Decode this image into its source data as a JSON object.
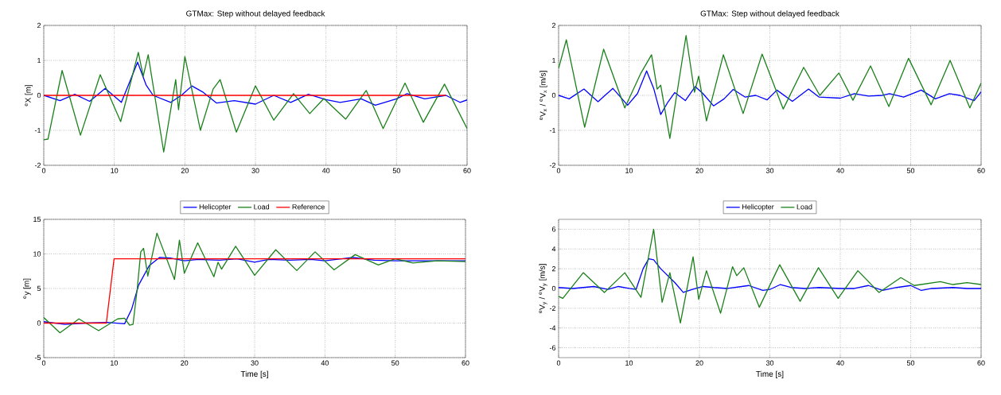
{
  "chart_data": [
    {
      "type": "line",
      "title": "GTMax: Step without delayed feedback",
      "ylabel": "$^{e}$X [m]",
      "xlim": [
        0,
        60
      ],
      "ylim": [
        -2,
        2
      ],
      "xticks": [
        0,
        10,
        20,
        30,
        40,
        50,
        60
      ],
      "yticks": [
        -2,
        -1,
        0,
        1,
        2
      ],
      "grid": true,
      "series": [
        {
          "color": "#0000ff",
          "x": [
            0,
            2.3,
            4.4,
            6.5,
            8.7,
            11.0,
            12.2,
            13.3,
            14.5,
            15.5,
            18,
            19.5,
            21,
            22.5,
            24.5,
            27,
            30,
            32.6,
            35,
            37.5,
            40,
            42,
            45,
            47,
            50,
            51.5,
            54,
            57,
            59,
            60
          ],
          "values": [
            0,
            -0.15,
            0.03,
            -0.17,
            0.2,
            -0.2,
            0.4,
            0.95,
            0.3,
            0.0,
            -0.2,
            0.0,
            0.27,
            0.1,
            -0.22,
            -0.15,
            -0.25,
            0.0,
            -0.2,
            0.03,
            -0.12,
            -0.2,
            -0.1,
            -0.28,
            -0.1,
            0.05,
            -0.1,
            0.0,
            -0.2,
            -0.13
          ]
        },
        {
          "color": "#1a801a",
          "x": [
            0,
            0.6,
            2.6,
            5.2,
            8.0,
            10.9,
            13.4,
            14.1,
            14.8,
            17.0,
            18.7,
            19.1,
            20.0,
            22.2,
            24.0,
            25.0,
            27.3,
            30.0,
            32.6,
            35.4,
            37.7,
            39.7,
            42.8,
            45.7,
            48.1,
            51.2,
            53.8,
            56.8,
            60
          ],
          "values": [
            -1.27,
            -1.25,
            0.71,
            -1.14,
            0.59,
            -0.75,
            1.23,
            0.55,
            1.16,
            -1.62,
            0.45,
            -0.41,
            1.11,
            -1.0,
            0.18,
            0.45,
            -1.05,
            0.27,
            -0.71,
            0.05,
            -0.52,
            -0.09,
            -0.68,
            0.14,
            -0.95,
            0.35,
            -0.77,
            0.32,
            -0.95
          ]
        },
        {
          "color": "#ff0000",
          "x": [
            0,
            57
          ],
          "values": [
            0,
            0
          ]
        }
      ]
    },
    {
      "type": "line",
      "title": "GTMax: Step without delayed feedback",
      "ylabel": "$^{e}$V$_{x}$ / $^{e}$V$_{x}$ [m/s]",
      "xlim": [
        0,
        60
      ],
      "ylim": [
        -2,
        2
      ],
      "xticks": [
        0,
        10,
        20,
        30,
        40,
        50,
        60
      ],
      "yticks": [
        -2,
        -1,
        0,
        1,
        2
      ],
      "grid": true,
      "series": [
        {
          "color": "#0000ff",
          "x": [
            0,
            1.5,
            3.6,
            5.6,
            7.7,
            9.8,
            11.2,
            12.5,
            13.5,
            14.5,
            15.5,
            16.5,
            18,
            19.4,
            20.5,
            22,
            23.5,
            24.8,
            26.5,
            28,
            29.6,
            31,
            33.2,
            35.5,
            37,
            40,
            42,
            44,
            46,
            47,
            49,
            51.5,
            53.5,
            55.5,
            57,
            59,
            60
          ],
          "values": [
            0,
            -0.1,
            0.18,
            -0.18,
            0.2,
            -0.28,
            0.05,
            0.7,
            0.2,
            -0.55,
            -0.2,
            0.08,
            -0.15,
            0.25,
            0.05,
            -0.3,
            -0.1,
            0.17,
            -0.05,
            0.0,
            -0.13,
            0.15,
            -0.17,
            0.18,
            -0.05,
            -0.08,
            0.05,
            -0.02,
            0.0,
            0.05,
            -0.05,
            0.15,
            -0.1,
            0.05,
            0.0,
            -0.15,
            0.1
          ]
        },
        {
          "color": "#1a801a",
          "x": [
            0,
            1.1,
            3.7,
            6.4,
            9.4,
            11.7,
            13.2,
            14.0,
            14.5,
            15.8,
            18.1,
            19.3,
            19.9,
            21.0,
            23.4,
            26.2,
            28.9,
            31.9,
            34.8,
            37.1,
            39.8,
            41.8,
            44.3,
            46.9,
            49.7,
            52.9,
            55.6,
            58.4,
            60
          ],
          "values": [
            0.77,
            1.59,
            -0.91,
            1.32,
            -0.36,
            0.64,
            1.16,
            0.18,
            0.29,
            -1.23,
            1.71,
            0.09,
            0.55,
            -0.73,
            1.16,
            -0.52,
            1.18,
            -0.39,
            0.8,
            0.0,
            0.64,
            -0.14,
            0.84,
            -0.32,
            1.06,
            -0.27,
            1.0,
            -0.36,
            0.35
          ]
        }
      ]
    },
    {
      "type": "line",
      "ylabel": "$^{e}$y [m]",
      "xlabel": "Time [s]",
      "xlim": [
        0,
        60
      ],
      "ylim": [
        -5,
        15
      ],
      "xticks": [
        0,
        10,
        20,
        30,
        40,
        50,
        60
      ],
      "yticks": [
        -5,
        0,
        5,
        10,
        15
      ],
      "grid": true,
      "legend": "top",
      "series": [
        {
          "name": "Helicopter",
          "color": "#0000ff",
          "x": [
            0,
            3,
            6,
            9,
            11.5,
            12.5,
            13.5,
            15,
            16.5,
            18,
            20,
            22,
            25,
            27.5,
            30,
            32,
            35,
            38,
            40,
            44,
            47,
            50,
            55,
            60
          ],
          "values": [
            0.2,
            -0.2,
            0.0,
            0.1,
            -0.1,
            2,
            5.5,
            8.3,
            9.5,
            9.4,
            9.0,
            9.2,
            9.1,
            9.3,
            8.8,
            9.2,
            9.1,
            9.2,
            9.0,
            9.5,
            9.1,
            9.0,
            9.0,
            9.0
          ]
        },
        {
          "name": "Load",
          "color": "#1a801a",
          "x": [
            0,
            2.3,
            5,
            7.8,
            10.5,
            11.5,
            12.2,
            12.7,
            13.3,
            13.8,
            14.2,
            14.8,
            16.1,
            18.6,
            19.3,
            20,
            21.9,
            24.2,
            24.8,
            25.3,
            27.3,
            30,
            33,
            36,
            38.6,
            41.3,
            44.3,
            47.6,
            50,
            52.5,
            56,
            60
          ],
          "values": [
            0.8,
            -1.4,
            0.6,
            -1.1,
            0.6,
            0.7,
            -0.3,
            -0.2,
            5,
            10.3,
            10.8,
            6.8,
            13.0,
            6.3,
            12.0,
            7.2,
            11.6,
            6.7,
            8.8,
            7.8,
            11.1,
            6.9,
            10.6,
            7.6,
            10.3,
            7.7,
            9.9,
            8.4,
            9.3,
            8.7,
            9.0,
            8.9
          ]
        },
        {
          "name": "Reference",
          "color": "#ff0000",
          "x": [
            0,
            8.9,
            10,
            60
          ],
          "values": [
            0,
            0,
            9.3,
            9.3
          ]
        }
      ]
    },
    {
      "type": "line",
      "ylabel": "$^{e}$V$_{y}$ / $^{e}$V$_{y}$ [m/s]",
      "xlabel": "Time [s]",
      "xlim": [
        0,
        60
      ],
      "ylim": [
        -7,
        7
      ],
      "xticks": [
        0,
        10,
        20,
        30,
        40,
        50,
        60
      ],
      "yticks": [
        -6,
        -4,
        -2,
        0,
        2,
        4,
        6
      ],
      "grid": true,
      "legend": "top",
      "series": [
        {
          "name": "Helicopter",
          "color": "#0000ff",
          "x": [
            0,
            2,
            5,
            7,
            8.5,
            10,
            11,
            12,
            12.8,
            13.5,
            14.5,
            15.5,
            16.5,
            17.7,
            19,
            20.5,
            22,
            24,
            26,
            27,
            29,
            30,
            31.5,
            33,
            35,
            37,
            40,
            42,
            44,
            46,
            48,
            50,
            51.5,
            53,
            56,
            58,
            60
          ],
          "values": [
            0.1,
            0.0,
            0.2,
            -0.1,
            0.2,
            0,
            -0.1,
            2.0,
            3.0,
            2.9,
            2.0,
            1.3,
            0.6,
            -0.4,
            -0.1,
            0.2,
            0.1,
            0.0,
            0.2,
            0.3,
            -0.2,
            -0.1,
            0.4,
            0.1,
            0.0,
            0.1,
            0.0,
            0.0,
            0.3,
            -0.2,
            0.1,
            0.3,
            -0.2,
            0.0,
            0.1,
            0.0,
            0.0
          ]
        },
        {
          "name": "Load",
          "color": "#1a801a",
          "x": [
            0,
            0.6,
            3.5,
            6.5,
            9.4,
            11.7,
            13.5,
            14.7,
            15.8,
            17.3,
            19.1,
            19.9,
            21.0,
            23.0,
            24.7,
            25.3,
            26.3,
            28.5,
            31.4,
            34.3,
            36.9,
            39.7,
            42.5,
            45.5,
            48.6,
            50.5,
            54.2,
            56,
            58,
            60
          ],
          "values": [
            -0.8,
            -1.0,
            1.6,
            -0.4,
            1.6,
            -0.9,
            6.0,
            -1.4,
            1.6,
            -3.5,
            3.2,
            -1.1,
            1.8,
            -2.5,
            2.2,
            1.3,
            2.1,
            -1.9,
            2.4,
            -1.3,
            2.1,
            -1.0,
            1.8,
            -0.4,
            1.1,
            0.3,
            0.7,
            0.4,
            0.6,
            0.4
          ]
        }
      ]
    }
  ]
}
